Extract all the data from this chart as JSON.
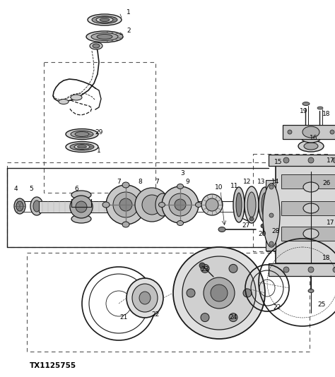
{
  "bg_color": "#ffffff",
  "line_color": "#1a1a1a",
  "dashed_color": "#555555",
  "fig_width": 4.74,
  "fig_height": 5.34,
  "dpi": 100,
  "part_number_text": "TX1125755"
}
